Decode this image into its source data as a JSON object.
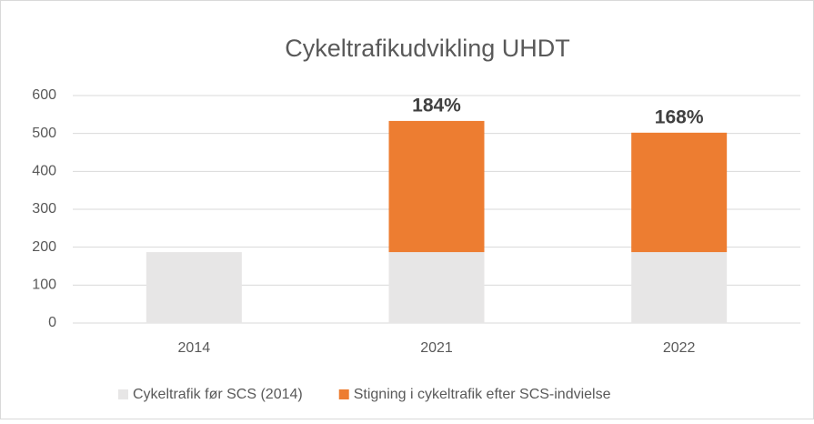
{
  "chart_data": {
    "type": "stacked_bar",
    "title": "Cykeltrafikudvikling UHDT",
    "categories": [
      "2014",
      "2021",
      "2022"
    ],
    "series": [
      {
        "name": "Cykeltrafik før SCS (2014)",
        "color": "#e7e6e6",
        "values": [
          187,
          187,
          187
        ]
      },
      {
        "name": "Stigning i cykeltrafik efter SCS-indvielse",
        "color": "#ed7d31",
        "values": [
          null,
          346,
          315
        ]
      }
    ],
    "annotations": [
      {
        "category": "2021",
        "label": "184%"
      },
      {
        "category": "2022",
        "label": "168%"
      }
    ],
    "ylim": [
      0,
      600
    ],
    "yticks": [
      0,
      100,
      200,
      300,
      400,
      500,
      600
    ],
    "grid": true,
    "legend": "bottom"
  }
}
